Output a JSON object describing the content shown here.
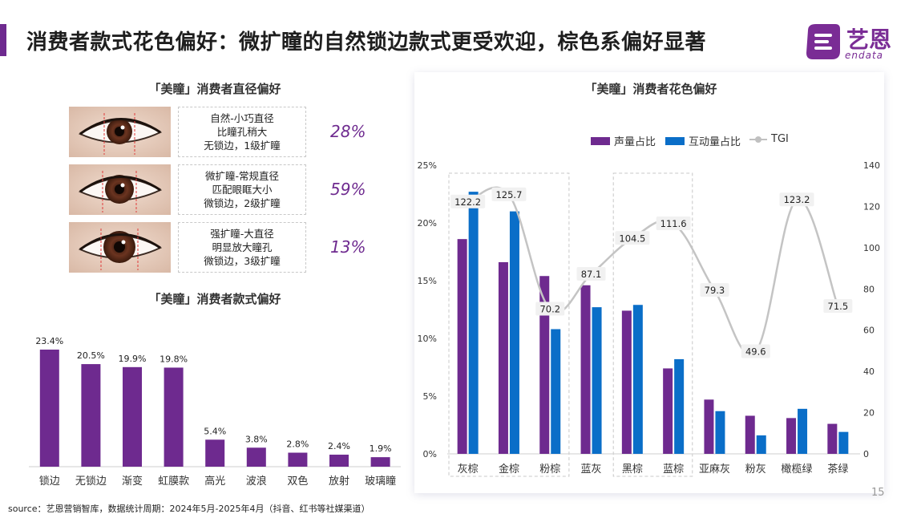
{
  "header": {
    "title": "消费者款式花色偏好：微扩瞳的自然锁边款式更受欢迎，棕色系偏好显著"
  },
  "logo": {
    "name": "艺恩",
    "sub": "endata"
  },
  "diameter": {
    "title": "「美瞳」消费者直径偏好",
    "items": [
      {
        "lines": [
          "自然-小巧直径",
          "比瞳孔稍大",
          "无锁边，1级扩瞳"
        ],
        "pct": "28%"
      },
      {
        "lines": [
          "微扩瞳-常规直径",
          "匹配眼眶大小",
          "微锁边，2级扩瞳"
        ],
        "pct": "59%"
      },
      {
        "lines": [
          "强扩瞳-大直径",
          "明显放大瞳孔",
          "微锁边，3级扩瞳"
        ],
        "pct": "13%"
      }
    ]
  },
  "colors": {
    "purple": "#6e2a8f",
    "blue": "#0a6ec8",
    "tgi": "#c4c4c4"
  },
  "chart_data": [
    {
      "type": "bar",
      "title": "「美瞳」消费者款式偏好",
      "categories": [
        "锁边",
        "无锁边",
        "渐变",
        "虹膜款",
        "高光",
        "波浪",
        "双色",
        "放射",
        "玻璃瞳"
      ],
      "values": [
        23.4,
        20.5,
        19.9,
        19.8,
        5.4,
        3.8,
        2.8,
        2.4,
        1.9
      ],
      "value_labels": [
        "23.4%",
        "20.5%",
        "19.9%",
        "19.8%",
        "5.4%",
        "3.8%",
        "2.8%",
        "2.4%",
        "1.9%"
      ],
      "ylim": [
        0,
        25
      ],
      "color": "#6e2a8f"
    },
    {
      "type": "bar",
      "title": "「美瞳」消费者花色偏好",
      "categories": [
        "灰棕",
        "金棕",
        "粉棕",
        "蓝灰",
        "黑棕",
        "蓝棕",
        "亚麻灰",
        "粉灰",
        "橄榄绿",
        "茶绿"
      ],
      "series": [
        {
          "name": "声量占比",
          "values": [
            18.6,
            16.6,
            15.4,
            14.6,
            12.4,
            7.4,
            4.7,
            3.3,
            3.1,
            2.6
          ]
        },
        {
          "name": "互动量占比",
          "values": [
            22.7,
            21.0,
            10.8,
            12.7,
            12.9,
            8.2,
            3.7,
            1.6,
            3.9,
            1.9
          ]
        }
      ],
      "line": {
        "name": "TGI",
        "values": [
          122.2,
          125.7,
          70.2,
          87.1,
          104.5,
          111.6,
          79.3,
          49.6,
          123.2,
          71.5
        ],
        "labels": [
          "122.2",
          "125.7",
          "70.2",
          "87.1",
          "104.5",
          "111.6",
          "79.3",
          "49.6",
          "123.2",
          "71.5"
        ]
      },
      "y_left": {
        "ticks": [
          "0%",
          "5%",
          "10%",
          "15%",
          "20%",
          "25%"
        ],
        "range": [
          0,
          25
        ]
      },
      "y_right": {
        "ticks": [
          "0",
          "20",
          "40",
          "60",
          "80",
          "100",
          "120",
          "140"
        ],
        "range": [
          0,
          140
        ]
      },
      "highlight_groups": [
        [
          0,
          2
        ],
        [
          4,
          5
        ]
      ]
    }
  ],
  "footer": {
    "source": "source：艺恩营销智库，数据统计周期：2024年5月-2025年4月（抖音、红书等社媒渠道）",
    "page": "15"
  }
}
